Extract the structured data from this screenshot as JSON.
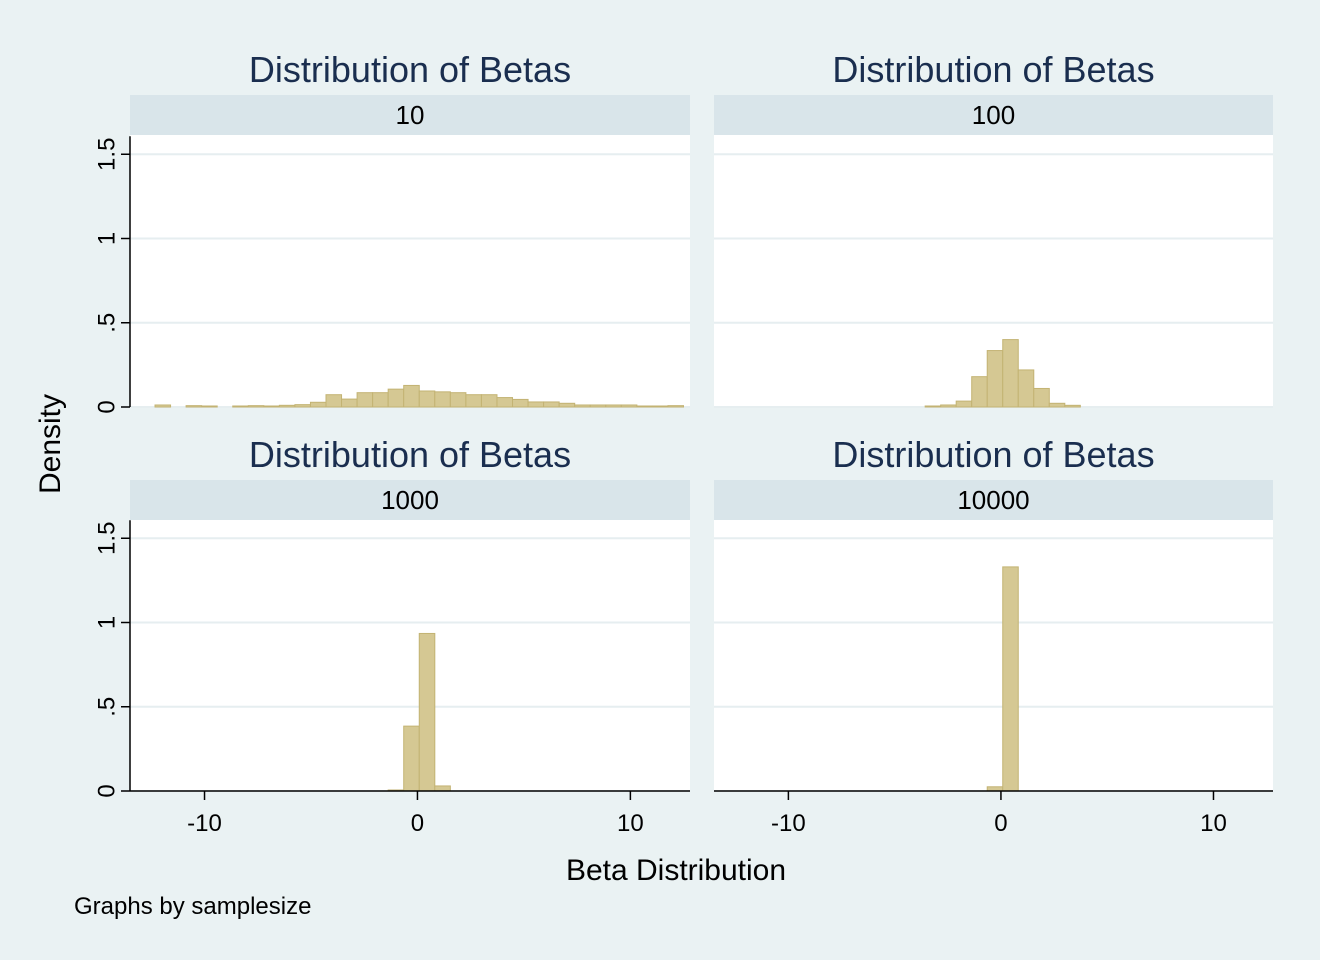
{
  "chart_data": {
    "type": "bar",
    "bar_color": "#d5c893",
    "bar_edge": "#c3b373",
    "strip_color": "#d9e5ea",
    "page_background": "#eaf2f3",
    "xlabel": "Beta Distribution",
    "ylabel": "Density",
    "note": "Graphs by samplesize",
    "xlim": [
      -13.5,
      12.8
    ],
    "ylim": [
      0,
      1.5
    ],
    "x_ticks": [
      -10,
      0,
      10
    ],
    "x_tick_labels": [
      "-10",
      "0",
      "10"
    ],
    "y_ticks": [
      0,
      0.5,
      1,
      1.5
    ],
    "y_tick_labels": [
      "0",
      ".5",
      "1",
      "1.5"
    ],
    "bin_width": 0.73,
    "panels": [
      {
        "title": "Distribution of Betas",
        "group": "10",
        "bins": [
          {
            "x": -11.96,
            "y": 0.012
          },
          {
            "x": -10.5,
            "y": 0.008
          },
          {
            "x": -9.77,
            "y": 0.006
          },
          {
            "x": -8.31,
            "y": 0.006
          },
          {
            "x": -7.58,
            "y": 0.008
          },
          {
            "x": -6.85,
            "y": 0.006
          },
          {
            "x": -6.12,
            "y": 0.01
          },
          {
            "x": -5.39,
            "y": 0.014
          },
          {
            "x": -4.66,
            "y": 0.028
          },
          {
            "x": -3.93,
            "y": 0.073
          },
          {
            "x": -3.2,
            "y": 0.047
          },
          {
            "x": -2.47,
            "y": 0.085
          },
          {
            "x": -1.74,
            "y": 0.085
          },
          {
            "x": -1.01,
            "y": 0.106
          },
          {
            "x": -0.28,
            "y": 0.128
          },
          {
            "x": 0.45,
            "y": 0.095
          },
          {
            "x": 1.18,
            "y": 0.09
          },
          {
            "x": 1.91,
            "y": 0.085
          },
          {
            "x": 2.64,
            "y": 0.073
          },
          {
            "x": 3.37,
            "y": 0.073
          },
          {
            "x": 4.1,
            "y": 0.056
          },
          {
            "x": 4.83,
            "y": 0.045
          },
          {
            "x": 5.56,
            "y": 0.03
          },
          {
            "x": 6.29,
            "y": 0.03
          },
          {
            "x": 7.02,
            "y": 0.022
          },
          {
            "x": 7.75,
            "y": 0.012
          },
          {
            "x": 8.48,
            "y": 0.012
          },
          {
            "x": 9.21,
            "y": 0.012
          },
          {
            "x": 9.94,
            "y": 0.012
          },
          {
            "x": 10.67,
            "y": 0.006
          },
          {
            "x": 11.4,
            "y": 0.006
          },
          {
            "x": 12.13,
            "y": 0.008
          }
        ]
      },
      {
        "title": "Distribution of Betas",
        "group": "100",
        "bins": [
          {
            "x": -3.2,
            "y": 0.006
          },
          {
            "x": -2.47,
            "y": 0.012
          },
          {
            "x": -1.74,
            "y": 0.035
          },
          {
            "x": -1.01,
            "y": 0.18
          },
          {
            "x": -0.28,
            "y": 0.335
          },
          {
            "x": 0.45,
            "y": 0.4
          },
          {
            "x": 1.18,
            "y": 0.22
          },
          {
            "x": 1.91,
            "y": 0.11
          },
          {
            "x": 2.64,
            "y": 0.022
          },
          {
            "x": 3.37,
            "y": 0.01
          }
        ]
      },
      {
        "title": "Distribution of Betas",
        "group": "1000",
        "bins": [
          {
            "x": -1.01,
            "y": 0.006
          },
          {
            "x": -0.28,
            "y": 0.385
          },
          {
            "x": 0.45,
            "y": 0.935
          },
          {
            "x": 1.18,
            "y": 0.03
          }
        ]
      },
      {
        "title": "Distribution of Betas",
        "group": "10000",
        "bins": [
          {
            "x": -0.28,
            "y": 0.025
          },
          {
            "x": 0.45,
            "y": 1.33
          }
        ]
      }
    ]
  }
}
